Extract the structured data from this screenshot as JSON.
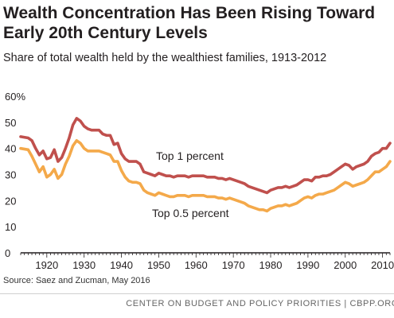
{
  "title": "Wealth Concentration Has Been Rising Toward Early 20th Century Levels",
  "subtitle": "Share of total wealth held by the wealthiest families, 1913-2012",
  "source": "Source: Saez and Zucman, May 2016",
  "footer": "CENTER ON BUDGET AND POLICY PRIORITIES | CBPP.ORG",
  "chart_data": {
    "type": "line",
    "title": "Wealth Concentration Has Been Rising Toward Early 20th Century Levels",
    "subtitle": "Share of total wealth held by the wealthiest families, 1913-2012",
    "xlim": [
      1913,
      2012
    ],
    "ylim": [
      0,
      60
    ],
    "x_ticks": [
      1920,
      1930,
      1940,
      1950,
      1960,
      1970,
      1980,
      1990,
      2000,
      2010
    ],
    "y_ticks": [
      {
        "value": 0,
        "label": "0"
      },
      {
        "value": 10,
        "label": "10"
      },
      {
        "value": 20,
        "label": "20"
      },
      {
        "value": 30,
        "label": "30"
      },
      {
        "value": 40,
        "label": "40"
      },
      {
        "value": 50,
        "label": "50"
      },
      {
        "value": 60,
        "label": "60%"
      }
    ],
    "grid": false,
    "series": [
      {
        "name": "Top 1 percent",
        "color": "#c0504d",
        "points": [
          [
            1913,
            44.5
          ],
          [
            1915,
            44
          ],
          [
            1916,
            43
          ],
          [
            1917,
            40
          ],
          [
            1918,
            37.5
          ],
          [
            1919,
            39
          ],
          [
            1920,
            36
          ],
          [
            1921,
            36.5
          ],
          [
            1922,
            39.5
          ],
          [
            1923,
            35
          ],
          [
            1924,
            36.5
          ],
          [
            1925,
            40
          ],
          [
            1926,
            44
          ],
          [
            1927,
            49
          ],
          [
            1928,
            51.5
          ],
          [
            1929,
            50.5
          ],
          [
            1930,
            48.5
          ],
          [
            1931,
            47.5
          ],
          [
            1932,
            47
          ],
          [
            1933,
            47
          ],
          [
            1934,
            47
          ],
          [
            1935,
            45.5
          ],
          [
            1936,
            45
          ],
          [
            1937,
            45
          ],
          [
            1938,
            41.5
          ],
          [
            1939,
            42
          ],
          [
            1940,
            38
          ],
          [
            1941,
            36
          ],
          [
            1942,
            35
          ],
          [
            1943,
            35
          ],
          [
            1944,
            35
          ],
          [
            1945,
            34
          ],
          [
            1946,
            31
          ],
          [
            1947,
            30.5
          ],
          [
            1948,
            30
          ],
          [
            1949,
            29.5
          ],
          [
            1950,
            30.5
          ],
          [
            1951,
            30
          ],
          [
            1952,
            29.5
          ],
          [
            1953,
            29.5
          ],
          [
            1954,
            29
          ],
          [
            1955,
            29.5
          ],
          [
            1956,
            29.5
          ],
          [
            1957,
            29.5
          ],
          [
            1958,
            29
          ],
          [
            1959,
            29.5
          ],
          [
            1960,
            29.5
          ],
          [
            1961,
            29.5
          ],
          [
            1962,
            29.5
          ],
          [
            1963,
            29
          ],
          [
            1964,
            29
          ],
          [
            1965,
            29
          ],
          [
            1966,
            28.5
          ],
          [
            1967,
            28.5
          ],
          [
            1968,
            28
          ],
          [
            1969,
            28.5
          ],
          [
            1970,
            28
          ],
          [
            1971,
            27.5
          ],
          [
            1972,
            27
          ],
          [
            1973,
            26.5
          ],
          [
            1974,
            25.5
          ],
          [
            1975,
            25
          ],
          [
            1976,
            24.5
          ],
          [
            1977,
            24
          ],
          [
            1978,
            23.5
          ],
          [
            1979,
            23
          ],
          [
            1980,
            24
          ],
          [
            1981,
            24.5
          ],
          [
            1982,
            25
          ],
          [
            1983,
            25
          ],
          [
            1984,
            25.5
          ],
          [
            1985,
            25
          ],
          [
            1986,
            25.5
          ],
          [
            1987,
            26
          ],
          [
            1988,
            27
          ],
          [
            1989,
            28
          ],
          [
            1990,
            28
          ],
          [
            1991,
            27.5
          ],
          [
            1992,
            29
          ],
          [
            1993,
            29
          ],
          [
            1994,
            29.5
          ],
          [
            1995,
            29.5
          ],
          [
            1996,
            30
          ],
          [
            1997,
            31
          ],
          [
            1998,
            32
          ],
          [
            1999,
            33
          ],
          [
            2000,
            34
          ],
          [
            2001,
            33.5
          ],
          [
            2002,
            32
          ],
          [
            2003,
            33
          ],
          [
            2004,
            33.5
          ],
          [
            2005,
            34
          ],
          [
            2006,
            35
          ],
          [
            2007,
            37
          ],
          [
            2008,
            38
          ],
          [
            2009,
            38.5
          ],
          [
            2010,
            40
          ],
          [
            2011,
            40
          ],
          [
            2012,
            42
          ]
        ]
      },
      {
        "name": "Top 0.5 percent",
        "color": "#f4a94a",
        "points": [
          [
            1913,
            40
          ],
          [
            1915,
            39.5
          ],
          [
            1916,
            37
          ],
          [
            1917,
            34
          ],
          [
            1918,
            31
          ],
          [
            1919,
            33
          ],
          [
            1920,
            29
          ],
          [
            1921,
            30
          ],
          [
            1922,
            32
          ],
          [
            1923,
            28.5
          ],
          [
            1924,
            30
          ],
          [
            1925,
            34
          ],
          [
            1926,
            37
          ],
          [
            1927,
            41
          ],
          [
            1928,
            43
          ],
          [
            1929,
            42
          ],
          [
            1930,
            40
          ],
          [
            1931,
            39
          ],
          [
            1932,
            39
          ],
          [
            1933,
            39
          ],
          [
            1934,
            39
          ],
          [
            1935,
            38.5
          ],
          [
            1936,
            38
          ],
          [
            1937,
            37.5
          ],
          [
            1938,
            35
          ],
          [
            1939,
            35
          ],
          [
            1940,
            31.5
          ],
          [
            1941,
            29
          ],
          [
            1942,
            27.5
          ],
          [
            1943,
            27
          ],
          [
            1944,
            27
          ],
          [
            1945,
            26.5
          ],
          [
            1946,
            24
          ],
          [
            1947,
            23
          ],
          [
            1948,
            22.5
          ],
          [
            1949,
            22
          ],
          [
            1950,
            23
          ],
          [
            1951,
            22.5
          ],
          [
            1952,
            22
          ],
          [
            1953,
            21.5
          ],
          [
            1954,
            21.5
          ],
          [
            1955,
            22
          ],
          [
            1956,
            22
          ],
          [
            1957,
            22
          ],
          [
            1958,
            21.5
          ],
          [
            1959,
            22
          ],
          [
            1960,
            22
          ],
          [
            1961,
            22
          ],
          [
            1962,
            22
          ],
          [
            1963,
            21.5
          ],
          [
            1964,
            21.5
          ],
          [
            1965,
            21.5
          ],
          [
            1966,
            21
          ],
          [
            1967,
            21
          ],
          [
            1968,
            20.5
          ],
          [
            1969,
            21
          ],
          [
            1970,
            20.5
          ],
          [
            1971,
            20
          ],
          [
            1972,
            19.5
          ],
          [
            1973,
            19
          ],
          [
            1974,
            18
          ],
          [
            1975,
            17.5
          ],
          [
            1976,
            17
          ],
          [
            1977,
            16.5
          ],
          [
            1978,
            16.5
          ],
          [
            1979,
            16
          ],
          [
            1980,
            17
          ],
          [
            1981,
            17.5
          ],
          [
            1982,
            18
          ],
          [
            1983,
            18
          ],
          [
            1984,
            18.5
          ],
          [
            1985,
            18
          ],
          [
            1986,
            18.5
          ],
          [
            1987,
            19
          ],
          [
            1988,
            20
          ],
          [
            1989,
            21
          ],
          [
            1990,
            21.5
          ],
          [
            1991,
            21
          ],
          [
            1992,
            22
          ],
          [
            1993,
            22.5
          ],
          [
            1994,
            22.5
          ],
          [
            1995,
            23
          ],
          [
            1996,
            23.5
          ],
          [
            1997,
            24
          ],
          [
            1998,
            25
          ],
          [
            1999,
            26
          ],
          [
            2000,
            27
          ],
          [
            2001,
            26.5
          ],
          [
            2002,
            25.5
          ],
          [
            2003,
            26
          ],
          [
            2004,
            26.5
          ],
          [
            2005,
            27
          ],
          [
            2006,
            28
          ],
          [
            2007,
            29.5
          ],
          [
            2008,
            31
          ],
          [
            2009,
            31
          ],
          [
            2010,
            32
          ],
          [
            2011,
            33
          ],
          [
            2012,
            35
          ]
        ]
      }
    ]
  }
}
